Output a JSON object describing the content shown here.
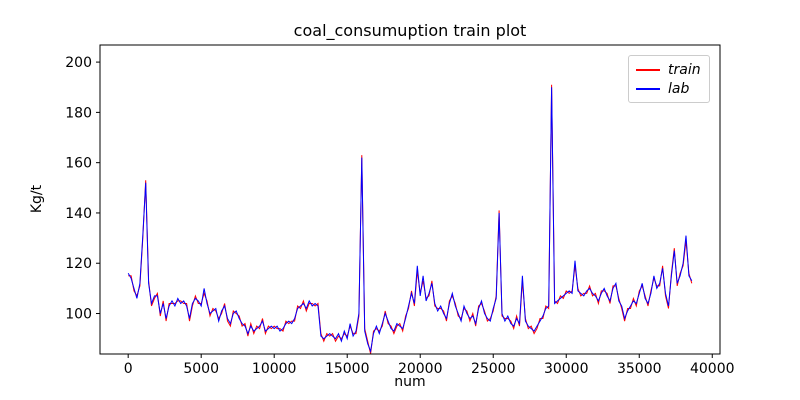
{
  "figure": {
    "title": "coal_consumuption train plot",
    "xlabel": "num",
    "ylabel": "Kg/t"
  },
  "chart_data": {
    "type": "line",
    "title": "coal_consumuption train plot",
    "xlabel": "num",
    "ylabel": "Kg/t",
    "xlim": [
      -1930,
      40530
    ],
    "ylim": [
      83.9,
      206.8
    ],
    "x_ticks": [
      0,
      5000,
      10000,
      15000,
      20000,
      25000,
      30000,
      35000,
      40000
    ],
    "y_ticks": [
      100,
      120,
      140,
      160,
      180,
      200
    ],
    "grid": false,
    "legend_position": "upper right",
    "x": [
      0,
      200,
      400,
      600,
      800,
      1000,
      1200,
      1400,
      1600,
      1800,
      2000,
      2200,
      2400,
      2600,
      2800,
      3000,
      3200,
      3400,
      3600,
      3800,
      4000,
      4200,
      4400,
      4600,
      4800,
      5000,
      5200,
      5400,
      5600,
      5800,
      6000,
      6200,
      6400,
      6600,
      6800,
      7000,
      7200,
      7400,
      7600,
      7800,
      8000,
      8200,
      8400,
      8600,
      8800,
      9000,
      9200,
      9400,
      9600,
      9800,
      10000,
      10200,
      10400,
      10600,
      10800,
      11000,
      11200,
      11400,
      11600,
      11800,
      12000,
      12200,
      12400,
      12600,
      12800,
      13000,
      13200,
      13400,
      13600,
      13800,
      14000,
      14200,
      14400,
      14600,
      14800,
      15000,
      15200,
      15400,
      15600,
      15800,
      16000,
      16200,
      16400,
      16600,
      16800,
      17000,
      17200,
      17400,
      17600,
      17800,
      18000,
      18200,
      18400,
      18600,
      18800,
      19000,
      19200,
      19400,
      19600,
      19800,
      20000,
      20200,
      20400,
      20600,
      20800,
      21000,
      21200,
      21400,
      21600,
      21800,
      22000,
      22200,
      22400,
      22600,
      22800,
      23000,
      23200,
      23400,
      23600,
      23800,
      24000,
      24200,
      24400,
      24600,
      24800,
      25000,
      25200,
      25400,
      25600,
      25800,
      26000,
      26200,
      26400,
      26600,
      26800,
      27000,
      27200,
      27400,
      27600,
      27800,
      28000,
      28200,
      28400,
      28600,
      28800,
      29000,
      29200,
      29400,
      29600,
      29800,
      30000,
      30200,
      30400,
      30600,
      30800,
      31000,
      31200,
      31400,
      31600,
      31800,
      32000,
      32200,
      32400,
      32600,
      32800,
      33000,
      33200,
      33400,
      33600,
      33800,
      34000,
      34200,
      34400,
      34600,
      34800,
      35000,
      35200,
      35400,
      35600,
      35800,
      36000,
      36200,
      36400,
      36600,
      36800,
      37000,
      37200,
      37400,
      37600,
      37800,
      38000,
      38200,
      38400,
      38600
    ],
    "series": [
      {
        "name": "train",
        "color": "#ff0000",
        "values": [
          115,
          115,
          109,
          107,
          111,
          130,
          153,
          113,
          103,
          106,
          108,
          99,
          105,
          97,
          104,
          104,
          104,
          105,
          105,
          104,
          104,
          97,
          103,
          107,
          104,
          104,
          108,
          105,
          99,
          102,
          101,
          98,
          100,
          104,
          97,
          95,
          101,
          100,
          99,
          95,
          96,
          91,
          96,
          92,
          95,
          94,
          98,
          92,
          95,
          94,
          95,
          94,
          94,
          93,
          97,
          96,
          97,
          97,
          103,
          102,
          105,
          101,
          104,
          104,
          103,
          104,
          92,
          89,
          92,
          91,
          92,
          89,
          91,
          90,
          92,
          91,
          95,
          92,
          92,
          99,
          163,
          94,
          89,
          84,
          93,
          94,
          93,
          95,
          101,
          96,
          95,
          92,
          95,
          96,
          93,
          99,
          102,
          109,
          103,
          117,
          108,
          113,
          106,
          107,
          113,
          103,
          102,
          102,
          101,
          97,
          105,
          107,
          104,
          99,
          98,
          102,
          101,
          97,
          100,
          95,
          103,
          104,
          101,
          97,
          98,
          101,
          107,
          141,
          99,
          98,
          98,
          97,
          94,
          99,
          95,
          113,
          98,
          94,
          95,
          92,
          94,
          98,
          98,
          103,
          102,
          191,
          105,
          104,
          107,
          106,
          109,
          108,
          109,
          119,
          110,
          107,
          108,
          108,
          111,
          107,
          108,
          104,
          109,
          109,
          108,
          104,
          111,
          111,
          106,
          102,
          97,
          102,
          102,
          106,
          103,
          109,
          111,
          107,
          103,
          109,
          114,
          111,
          111,
          119,
          107,
          102,
          116,
          126,
          111,
          116,
          119,
          129,
          116,
          112
        ]
      },
      {
        "name": "lab",
        "color": "#0000ff",
        "values": [
          116,
          114,
          110,
          106,
          112,
          131,
          152,
          112,
          104,
          107,
          107,
          100,
          104,
          98,
          103,
          105,
          103,
          106,
          104,
          105,
          103,
          98,
          104,
          106,
          105,
          103,
          110,
          104,
          100,
          101,
          102,
          97,
          101,
          103,
          98,
          96,
          100,
          101,
          98,
          96,
          95,
          92,
          95,
          93,
          94,
          95,
          97,
          93,
          94,
          95,
          94,
          95,
          93,
          94,
          96,
          97,
          96,
          98,
          102,
          103,
          104,
          102,
          105,
          103,
          104,
          103,
          91,
          90,
          91,
          92,
          91,
          90,
          92,
          89,
          93,
          90,
          96,
          91,
          93,
          100,
          162,
          93,
          88,
          85,
          92,
          95,
          92,
          96,
          100,
          97,
          94,
          93,
          96,
          95,
          94,
          98,
          103,
          108,
          104,
          119,
          107,
          115,
          105,
          108,
          112,
          104,
          101,
          103,
          100,
          98,
          104,
          108,
          103,
          100,
          97,
          103,
          100,
          98,
          99,
          96,
          102,
          105,
          100,
          98,
          97,
          102,
          106,
          140,
          100,
          97,
          99,
          96,
          95,
          98,
          96,
          115,
          97,
          95,
          94,
          93,
          95,
          97,
          99,
          102,
          103,
          190,
          104,
          105,
          106,
          107,
          108,
          109,
          108,
          121,
          109,
          108,
          107,
          109,
          110,
          108,
          107,
          105,
          108,
          110,
          107,
          105,
          110,
          112,
          105,
          103,
          98,
          101,
          103,
          105,
          104,
          108,
          112,
          106,
          104,
          108,
          115,
          110,
          112,
          118,
          108,
          103,
          115,
          125,
          112,
          115,
          120,
          131,
          115,
          113
        ]
      }
    ]
  }
}
